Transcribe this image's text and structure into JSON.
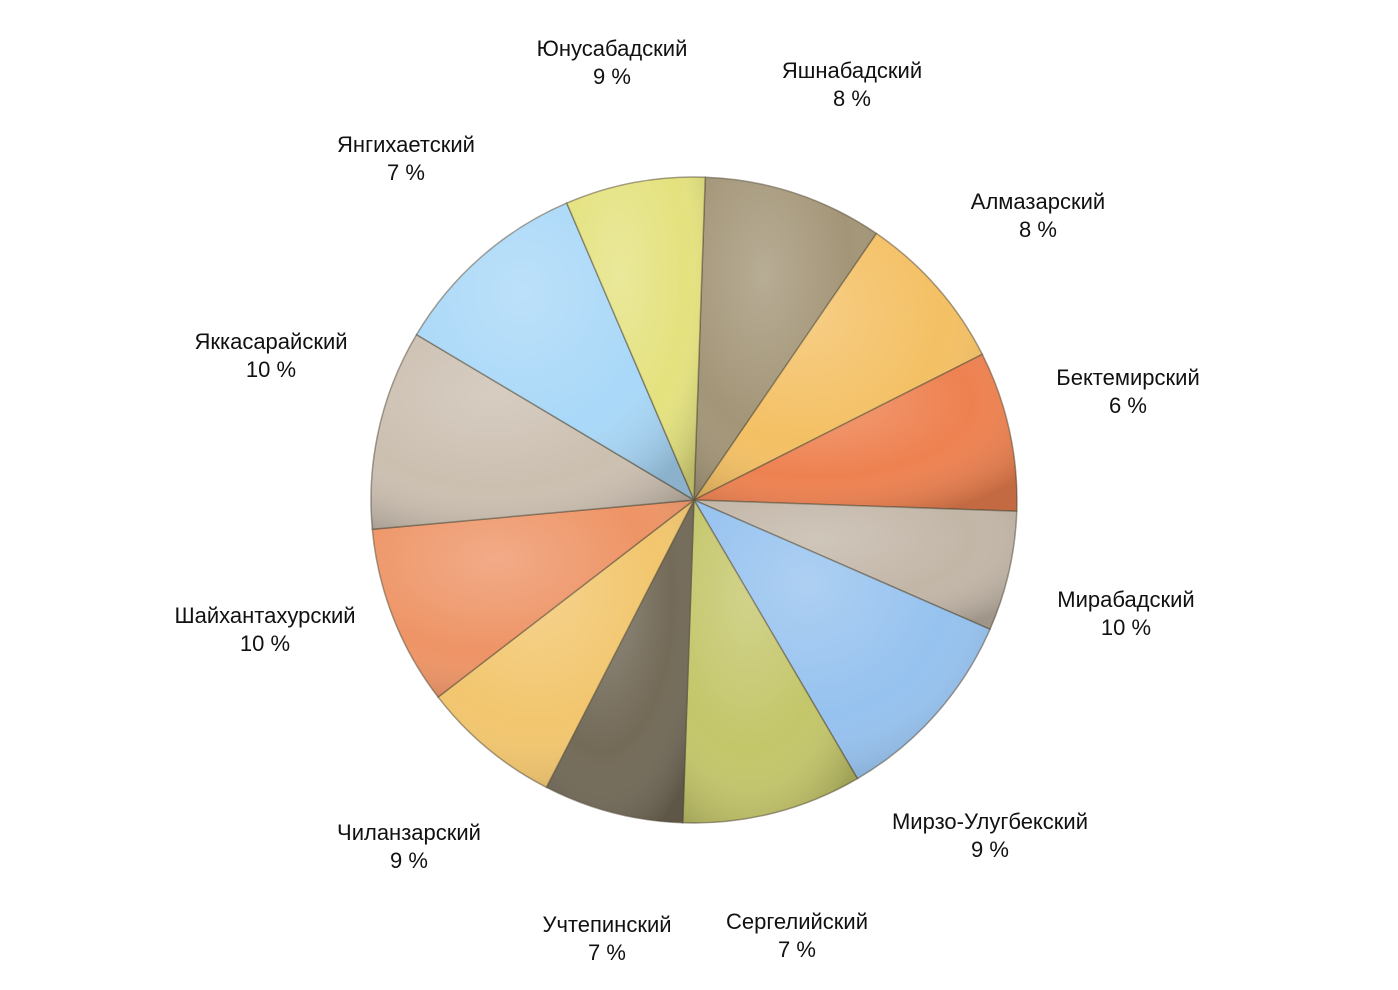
{
  "chart_data": {
    "type": "pie",
    "title": "",
    "slices": [
      {
        "name": "Юнусабадский",
        "value": 9,
        "label": "9 %",
        "color": "#a39577"
      },
      {
        "name": "Яшнабадский",
        "value": 8,
        "label": "8 %",
        "color": "#f4c064"
      },
      {
        "name": "Алмазарский",
        "value": 8,
        "label": "8 %",
        "color": "#ee8150"
      },
      {
        "name": "Бектемирский",
        "value": 6,
        "label": "6 %",
        "color": "#c2b6a7"
      },
      {
        "name": "Мирабадский",
        "value": 10,
        "label": "10 %",
        "color": "#96c2ef"
      },
      {
        "name": "Мирзо-Улугбекский",
        "value": 9,
        "label": "9 %",
        "color": "#c4c66a"
      },
      {
        "name": "Сергелийский",
        "value": 7,
        "label": "7 %",
        "color": "#736a58"
      },
      {
        "name": "Учтепинский",
        "value": 7,
        "label": "7 %",
        "color": "#f2c66e"
      },
      {
        "name": "Чиланзарский",
        "value": 9,
        "label": "9 %",
        "color": "#ee9466"
      },
      {
        "name": "Шайхантахурский",
        "value": 10,
        "label": "10 %",
        "color": "#cbbfb0"
      },
      {
        "name": "Яккасарайский",
        "value": 10,
        "label": "10 %",
        "color": "#a9d8f8"
      },
      {
        "name": "Янгихаетский",
        "value": 7,
        "label": "7 %",
        "color": "#e4e27e"
      }
    ]
  }
}
